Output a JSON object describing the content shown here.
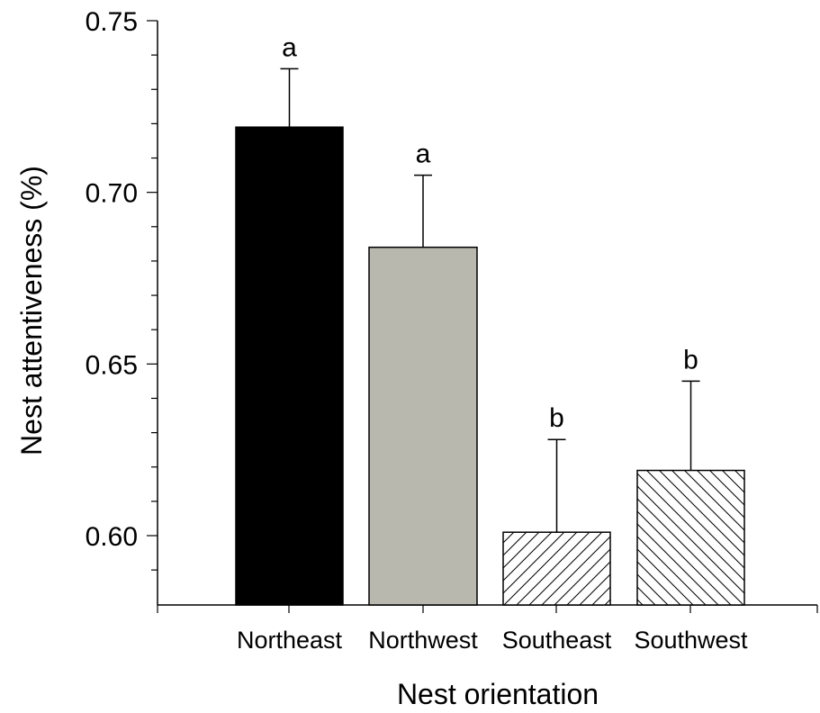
{
  "chart_data": {
    "type": "bar",
    "title": "",
    "xlabel": "Nest orientation",
    "ylabel": "Nest attentiveness (%)",
    "ylim": [
      0.58,
      0.75
    ],
    "yticks": [
      "0.60",
      "0.65",
      "0.70",
      "0.75"
    ],
    "grid": false,
    "legend": "none",
    "categories": [
      "Northeast",
      "Northwest",
      "Southeast",
      "Southwest"
    ],
    "values": [
      0.719,
      0.684,
      0.601,
      0.619
    ],
    "error_upper": [
      0.736,
      0.705,
      0.628,
      0.645
    ],
    "significance_letters": [
      "a",
      "a",
      "b",
      "b"
    ],
    "bar_fills": [
      {
        "color": "#000000",
        "pattern": "solid"
      },
      {
        "color": "#b8b8ae",
        "pattern": "solid"
      },
      {
        "color": "#ffffff",
        "pattern": "forward-diagonal-hatch"
      },
      {
        "color": "#ffffff",
        "pattern": "backward-diagonal-hatch"
      }
    ]
  }
}
